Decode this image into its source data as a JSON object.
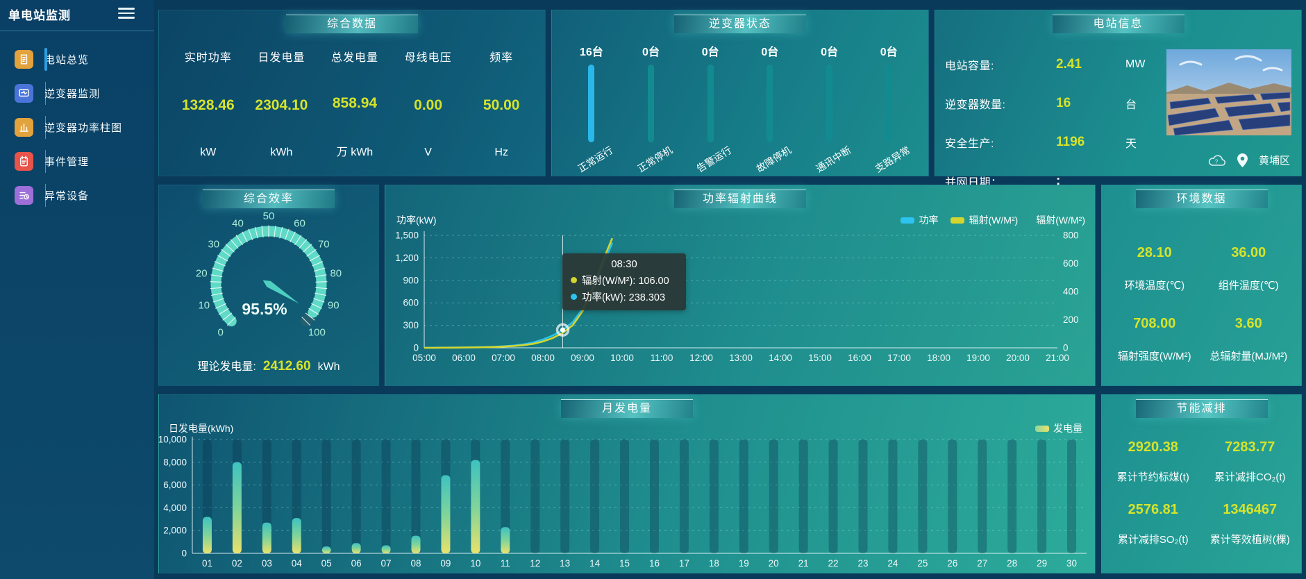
{
  "app": {
    "title": "单电站监测"
  },
  "colors": {
    "accent_yellow": "#d6e32b",
    "power_line": "#2cc3ef",
    "radiation_line": "#d4d52e",
    "inverter_bar_active": "#2ab7ea",
    "inverter_bar_idle": "#128b90",
    "icon_overview": "#e2a23c",
    "icon_monitor": "#4a74d8",
    "icon_barchart": "#e2a23c",
    "icon_events": "#e8534a",
    "icon_abnormal": "#9d6fd8"
  },
  "sidebar": {
    "items": [
      {
        "label": "电站总览",
        "active": true
      },
      {
        "label": "逆变器监测",
        "active": false
      },
      {
        "label": "逆变器功率柱图",
        "active": false
      },
      {
        "label": "事件管理",
        "active": false
      },
      {
        "label": "异常设备",
        "active": false
      }
    ]
  },
  "panels": {
    "summary": {
      "title": "综合数据",
      "metrics": [
        {
          "label": "实时功率",
          "value": "1328.46",
          "unit": "kW"
        },
        {
          "label": "日发电量",
          "value": "2304.10",
          "unit": "kWh"
        },
        {
          "label": "总发电量",
          "value": "858.94",
          "unit": "万 kWh"
        },
        {
          "label": "母线电压",
          "value": "0.00",
          "unit": "V"
        },
        {
          "label": "频率",
          "value": "50.00",
          "unit": "Hz"
        }
      ]
    },
    "inverter": {
      "title": "逆变器状态",
      "items": [
        {
          "count": "16台",
          "label": "正常运行",
          "highlight": true
        },
        {
          "count": "0台",
          "label": "正常停机",
          "highlight": false
        },
        {
          "count": "0台",
          "label": "告警运行",
          "highlight": false
        },
        {
          "count": "0台",
          "label": "故障停机",
          "highlight": false
        },
        {
          "count": "0台",
          "label": "通讯中断",
          "highlight": false
        },
        {
          "count": "0台",
          "label": "支路异常",
          "highlight": false
        }
      ]
    },
    "station": {
      "title": "电站信息",
      "rows": [
        {
          "label": "电站容量:",
          "value": "2.41",
          "unit": "MW"
        },
        {
          "label": "逆变器数量:",
          "value": "16",
          "unit": "台"
        },
        {
          "label": "安全生产:",
          "value": "1196",
          "unit": "天"
        },
        {
          "label": "并网日期：",
          "value": ":",
          "unit": ""
        }
      ],
      "location": "黄埔区"
    },
    "efficiency": {
      "title": "综合效率",
      "value_label": "95.5%",
      "theory_label": "理论发电量:",
      "theory_value": "2412.60",
      "theory_unit": "kWh"
    },
    "curve": {
      "title": "功率辐射曲线",
      "axis_left_name": "功率(kW)",
      "axis_right_name": "辐射(W/M²)",
      "legend": [
        {
          "label": "功率",
          "color": "#2cc3ef"
        },
        {
          "label": "辐射(W/M²)",
          "color": "#d4d52e"
        }
      ],
      "tooltip": {
        "time": "08:30",
        "rows": [
          {
            "text": "辐射(W/M²): 106.00",
            "color": "#d4d52e"
          },
          {
            "text": "功率(kW): 238.303",
            "color": "#2cc3ef"
          }
        ]
      }
    },
    "environment": {
      "title": "环境数据",
      "items": [
        {
          "value": "28.10",
          "label": "环境温度(℃)"
        },
        {
          "value": "36.00",
          "label": "组件温度(℃)"
        },
        {
          "value": "708.00",
          "label": "辐射强度(W/M²)"
        },
        {
          "value": "3.60",
          "label": "总辐射量(MJ/M²)"
        }
      ]
    },
    "monthly": {
      "title": "月发电量",
      "ylabel": "日发电量(kWh)",
      "legend": "发电量"
    },
    "saving": {
      "title": "节能减排",
      "items": [
        {
          "value": "2920.38",
          "label": "累计节约标煤(t)"
        },
        {
          "value": "7283.77",
          "label": "累计减排CO₂(t)"
        },
        {
          "value": "2576.81",
          "label": "累计减排SO₂(t)"
        },
        {
          "value": "1346467",
          "label": "累计等效植树(棵)"
        }
      ]
    }
  },
  "chart_data": [
    {
      "id": "power_radiation",
      "type": "line",
      "title": "功率辐射曲线",
      "x_min": 5,
      "x_max": 21,
      "x_labels": [
        "05:00",
        "06:00",
        "07:00",
        "08:00",
        "09:00",
        "10:00",
        "11:00",
        "12:00",
        "13:00",
        "14:00",
        "15:00",
        "16:00",
        "17:00",
        "18:00",
        "19:00",
        "20:00",
        "21:00"
      ],
      "x_hours": [
        5.0,
        5.25,
        5.5,
        5.75,
        6.0,
        6.25,
        6.5,
        6.75,
        7.0,
        7.25,
        7.5,
        7.75,
        8.0,
        8.25,
        8.5,
        8.75,
        9.0,
        9.25,
        9.5,
        9.75
      ],
      "y_left": {
        "name": "功率(kW)",
        "min": 0,
        "max": 1500,
        "step": 300
      },
      "y_right": {
        "name": "辐射(W/M²)",
        "min": 0,
        "max": 800,
        "step": 200
      },
      "series": [
        {
          "name": "功率",
          "axis": "left",
          "color": "#2cc3ef",
          "values": [
            2,
            2,
            3,
            4,
            5,
            7,
            10,
            14,
            20,
            30,
            45,
            70,
            110,
            165,
            238.303,
            340,
            520,
            760,
            1080,
            1400
          ]
        },
        {
          "name": "辐射(W/M²)",
          "axis": "right",
          "color": "#d4d52e",
          "values": [
            0,
            0,
            1,
            1,
            2,
            3,
            4,
            6,
            9,
            13,
            19,
            28,
            45,
            70,
            106,
            160,
            260,
            420,
            610,
            780
          ]
        }
      ],
      "tooltip_hour": 8.5,
      "grid": "dashed-horizontal",
      "legend_position": "top-right"
    },
    {
      "id": "monthly_generation",
      "type": "bar",
      "title": "月发电量",
      "xlabel": "",
      "ylabel": "日发电量(kWh)",
      "ylim": [
        0,
        10000
      ],
      "ystep": 2000,
      "legend": "发电量",
      "categories": [
        "01",
        "02",
        "03",
        "04",
        "05",
        "06",
        "07",
        "08",
        "09",
        "10",
        "11",
        "12",
        "13",
        "14",
        "15",
        "16",
        "17",
        "18",
        "19",
        "20",
        "21",
        "22",
        "23",
        "24",
        "25",
        "26",
        "27",
        "28",
        "29",
        "30"
      ],
      "values": [
        3200,
        8000,
        2700,
        3100,
        600,
        900,
        700,
        1550,
        6860,
        8190,
        2300,
        0,
        0,
        0,
        0,
        0,
        0,
        0,
        0,
        0,
        0,
        0,
        0,
        0,
        0,
        0,
        0,
        0,
        0,
        0
      ]
    },
    {
      "id": "efficiency_gauge",
      "type": "gauge",
      "title": "综合效率",
      "value": 95.5,
      "min": 0,
      "max": 100,
      "major_tick_step": 10,
      "minor_tick_step": 2.5
    },
    {
      "id": "inverter_status",
      "type": "bar",
      "title": "逆变器状态",
      "categories": [
        "正常运行",
        "正常停机",
        "告警运行",
        "故障停机",
        "通讯中断",
        "支路异常"
      ],
      "values": [
        16,
        0,
        0,
        0,
        0,
        0
      ],
      "unit": "台"
    }
  ]
}
